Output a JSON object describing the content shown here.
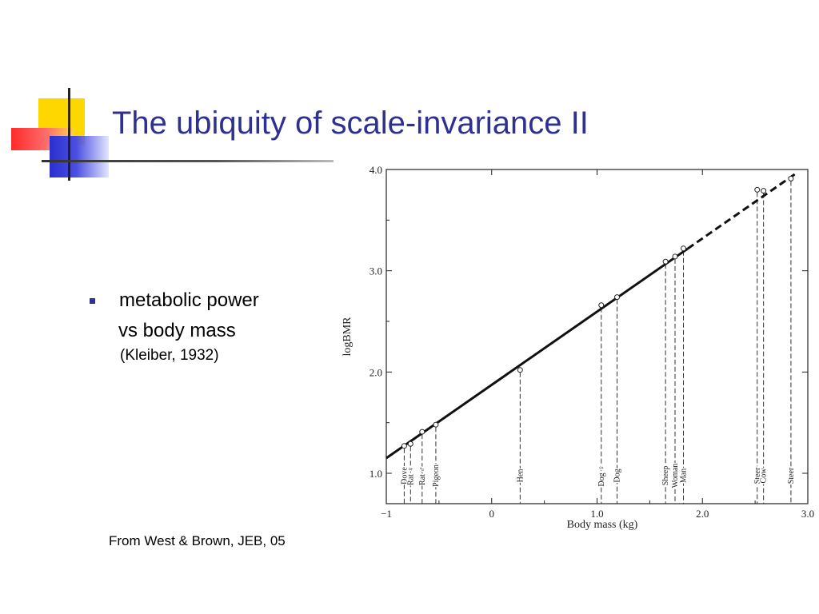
{
  "slide": {
    "title": "The ubiquity of scale-invariance II",
    "bullet": "metabolic power",
    "bullet_line2": "vs body mass",
    "citation": "(Kleiber, 1932)",
    "source": "From West & Brown, JEB, 05"
  },
  "colors": {
    "title": "#2e3192",
    "bullet": "#2e3192",
    "deco_yellow": "#ffd700",
    "deco_red": "#ff3b3b",
    "deco_blue": "#3a3fd6"
  },
  "chart_data": {
    "type": "scatter",
    "title": "",
    "xlabel": "Body mass (kg)",
    "ylabel": "logBMR",
    "xlim": [
      -1,
      3.0
    ],
    "ylim": [
      0.7,
      4.0
    ],
    "x_ticks": [
      "−1",
      "0",
      "1.0",
      "2.0",
      "3.0"
    ],
    "y_ticks": [
      "1.0",
      "2.0",
      "3.0",
      "4.0"
    ],
    "points": [
      {
        "label": "Dove",
        "x": -0.83,
        "y": 1.27
      },
      {
        "label": "Rat ♀",
        "x": -0.77,
        "y": 1.29
      },
      {
        "label": "Rat ♂",
        "x": -0.66,
        "y": 1.41
      },
      {
        "label": "Pigeon",
        "x": -0.53,
        "y": 1.48
      },
      {
        "label": "Hen",
        "x": 0.27,
        "y": 2.02
      },
      {
        "label": "Dog ♀",
        "x": 1.04,
        "y": 2.66
      },
      {
        "label": "Dog",
        "x": 1.19,
        "y": 2.74
      },
      {
        "label": "Sheep",
        "x": 1.65,
        "y": 3.09
      },
      {
        "label": "Woman",
        "x": 1.74,
        "y": 3.14
      },
      {
        "label": "Man",
        "x": 1.82,
        "y": 3.22
      },
      {
        "label": "Steer",
        "x": 2.52,
        "y": 3.8
      },
      {
        "label": "Cow",
        "x": 2.58,
        "y": 3.79
      },
      {
        "label": "Steer",
        "x": 2.84,
        "y": 3.91
      }
    ],
    "fit_line": {
      "x": [
        -1,
        2.9
      ],
      "y": [
        1.15,
        3.97
      ],
      "solid_until_x": 1.86
    },
    "grid": false,
    "legend": "none"
  }
}
